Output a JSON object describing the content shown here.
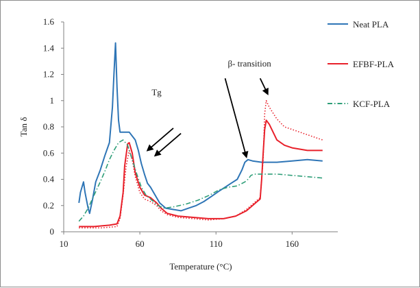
{
  "chart_data": {
    "type": "line",
    "xlabel": "Temperature (°C)",
    "ylabel": "Tan δ",
    "xlim": [
      10,
      190
    ],
    "ylim": [
      0,
      1.6
    ],
    "xticks": [
      10,
      60,
      110,
      160
    ],
    "yticks": [
      0,
      0.2,
      0.4,
      0.6,
      0.8,
      1,
      1.2,
      1.4,
      1.6
    ],
    "grid": false,
    "legend": "right",
    "series": [
      {
        "name": "Neat PLA",
        "color": "#2e75b6",
        "style": "solid",
        "points": [
          [
            20,
            0.22
          ],
          [
            21,
            0.3
          ],
          [
            23,
            0.38
          ],
          [
            24,
            0.3
          ],
          [
            26,
            0.18
          ],
          [
            27,
            0.14
          ],
          [
            29,
            0.25
          ],
          [
            31,
            0.38
          ],
          [
            34,
            0.47
          ],
          [
            37,
            0.58
          ],
          [
            40,
            0.68
          ],
          [
            42,
            0.95
          ],
          [
            43,
            1.2
          ],
          [
            44,
            1.44
          ],
          [
            45,
            1.1
          ],
          [
            46,
            0.85
          ],
          [
            47,
            0.76
          ],
          [
            50,
            0.76
          ],
          [
            53,
            0.76
          ],
          [
            55,
            0.73
          ],
          [
            57,
            0.7
          ],
          [
            59,
            0.62
          ],
          [
            61,
            0.52
          ],
          [
            63,
            0.44
          ],
          [
            65,
            0.37
          ],
          [
            67,
            0.34
          ],
          [
            70,
            0.28
          ],
          [
            73,
            0.22
          ],
          [
            77,
            0.18
          ],
          [
            82,
            0.17
          ],
          [
            87,
            0.16
          ],
          [
            92,
            0.18
          ],
          [
            97,
            0.2
          ],
          [
            102,
            0.23
          ],
          [
            107,
            0.27
          ],
          [
            112,
            0.31
          ],
          [
            116,
            0.34
          ],
          [
            120,
            0.37
          ],
          [
            124,
            0.4
          ],
          [
            127,
            0.47
          ],
          [
            129,
            0.53
          ],
          [
            131,
            0.55
          ],
          [
            134,
            0.54
          ],
          [
            140,
            0.53
          ],
          [
            150,
            0.53
          ],
          [
            160,
            0.54
          ],
          [
            170,
            0.55
          ],
          [
            180,
            0.54
          ]
        ]
      },
      {
        "name": "EFBF-PLA",
        "color": "#e8202a",
        "style": "solid",
        "points": [
          [
            20,
            0.04
          ],
          [
            30,
            0.04
          ],
          [
            40,
            0.05
          ],
          [
            45,
            0.06
          ],
          [
            47,
            0.12
          ],
          [
            49,
            0.3
          ],
          [
            50,
            0.5
          ],
          [
            52,
            0.67
          ],
          [
            53,
            0.68
          ],
          [
            55,
            0.6
          ],
          [
            57,
            0.45
          ],
          [
            60,
            0.34
          ],
          [
            63,
            0.28
          ],
          [
            67,
            0.26
          ],
          [
            71,
            0.22
          ],
          [
            74,
            0.18
          ],
          [
            78,
            0.14
          ],
          [
            85,
            0.12
          ],
          [
            95,
            0.11
          ],
          [
            105,
            0.1
          ],
          [
            115,
            0.1
          ],
          [
            123,
            0.12
          ],
          [
            130,
            0.16
          ],
          [
            134,
            0.2
          ],
          [
            137,
            0.23
          ],
          [
            139,
            0.25
          ],
          [
            140,
            0.4
          ],
          [
            141,
            0.6
          ],
          [
            142,
            0.78
          ],
          [
            143,
            0.85
          ],
          [
            145,
            0.82
          ],
          [
            150,
            0.7
          ],
          [
            155,
            0.66
          ],
          [
            160,
            0.64
          ],
          [
            170,
            0.62
          ],
          [
            180,
            0.62
          ]
        ]
      },
      {
        "name": "EFBF-PLA",
        "color": "#e8202a",
        "style": "dotted",
        "points": [
          [
            20,
            0.03
          ],
          [
            35,
            0.03
          ],
          [
            45,
            0.04
          ],
          [
            47,
            0.1
          ],
          [
            49,
            0.28
          ],
          [
            51,
            0.5
          ],
          [
            53,
            0.62
          ],
          [
            55,
            0.55
          ],
          [
            57,
            0.42
          ],
          [
            60,
            0.3
          ],
          [
            63,
            0.25
          ],
          [
            67,
            0.23
          ],
          [
            71,
            0.2
          ],
          [
            74,
            0.16
          ],
          [
            78,
            0.13
          ],
          [
            85,
            0.11
          ],
          [
            95,
            0.1
          ],
          [
            105,
            0.09
          ],
          [
            115,
            0.1
          ],
          [
            123,
            0.12
          ],
          [
            130,
            0.17
          ],
          [
            134,
            0.21
          ],
          [
            137,
            0.24
          ],
          [
            139,
            0.26
          ],
          [
            141,
            0.55
          ],
          [
            142,
            0.9
          ],
          [
            143,
            1.0
          ],
          [
            145,
            0.95
          ],
          [
            150,
            0.86
          ],
          [
            155,
            0.8
          ],
          [
            160,
            0.78
          ],
          [
            170,
            0.74
          ],
          [
            180,
            0.7
          ]
        ]
      },
      {
        "name": "KCF-PLA",
        "color": "#2e9e78",
        "style": "dashdot",
        "points": [
          [
            20,
            0.08
          ],
          [
            23,
            0.12
          ],
          [
            26,
            0.18
          ],
          [
            30,
            0.28
          ],
          [
            34,
            0.38
          ],
          [
            37,
            0.46
          ],
          [
            40,
            0.55
          ],
          [
            43,
            0.62
          ],
          [
            46,
            0.68
          ],
          [
            49,
            0.7
          ],
          [
            52,
            0.66
          ],
          [
            55,
            0.55
          ],
          [
            58,
            0.44
          ],
          [
            61,
            0.34
          ],
          [
            64,
            0.28
          ],
          [
            68,
            0.24
          ],
          [
            72,
            0.2
          ],
          [
            76,
            0.18
          ],
          [
            82,
            0.19
          ],
          [
            90,
            0.21
          ],
          [
            98,
            0.24
          ],
          [
            106,
            0.28
          ],
          [
            112,
            0.32
          ],
          [
            118,
            0.34
          ],
          [
            124,
            0.35
          ],
          [
            129,
            0.38
          ],
          [
            131,
            0.4
          ],
          [
            133,
            0.43
          ],
          [
            135,
            0.44
          ],
          [
            140,
            0.44
          ],
          [
            150,
            0.44
          ],
          [
            160,
            0.43
          ],
          [
            170,
            0.42
          ],
          [
            180,
            0.41
          ]
        ]
      }
    ],
    "legend_entries": [
      {
        "name": "Neat PLA",
        "color": "#2e75b6",
        "style": "solid"
      },
      {
        "name": "EFBF-PLA",
        "color": "#e8202a",
        "style": "solid"
      },
      {
        "name": "KCF-PLA",
        "color": "#2e9e78",
        "style": "dashdot"
      }
    ],
    "annotations": [
      {
        "text": "Tg",
        "x": 71,
        "y": 1.04
      },
      {
        "text": "β- transition",
        "x": 132,
        "y": 1.26
      }
    ],
    "arrows": [
      {
        "from": [
          82,
          0.79
        ],
        "to": [
          65,
          0.62
        ]
      },
      {
        "from": [
          87,
          0.75
        ],
        "to": [
          70,
          0.58
        ]
      },
      {
        "from": [
          116,
          1.17
        ],
        "to": [
          130,
          0.57
        ]
      },
      {
        "from": [
          139,
          1.17
        ],
        "to": [
          144,
          1.05
        ]
      }
    ]
  }
}
